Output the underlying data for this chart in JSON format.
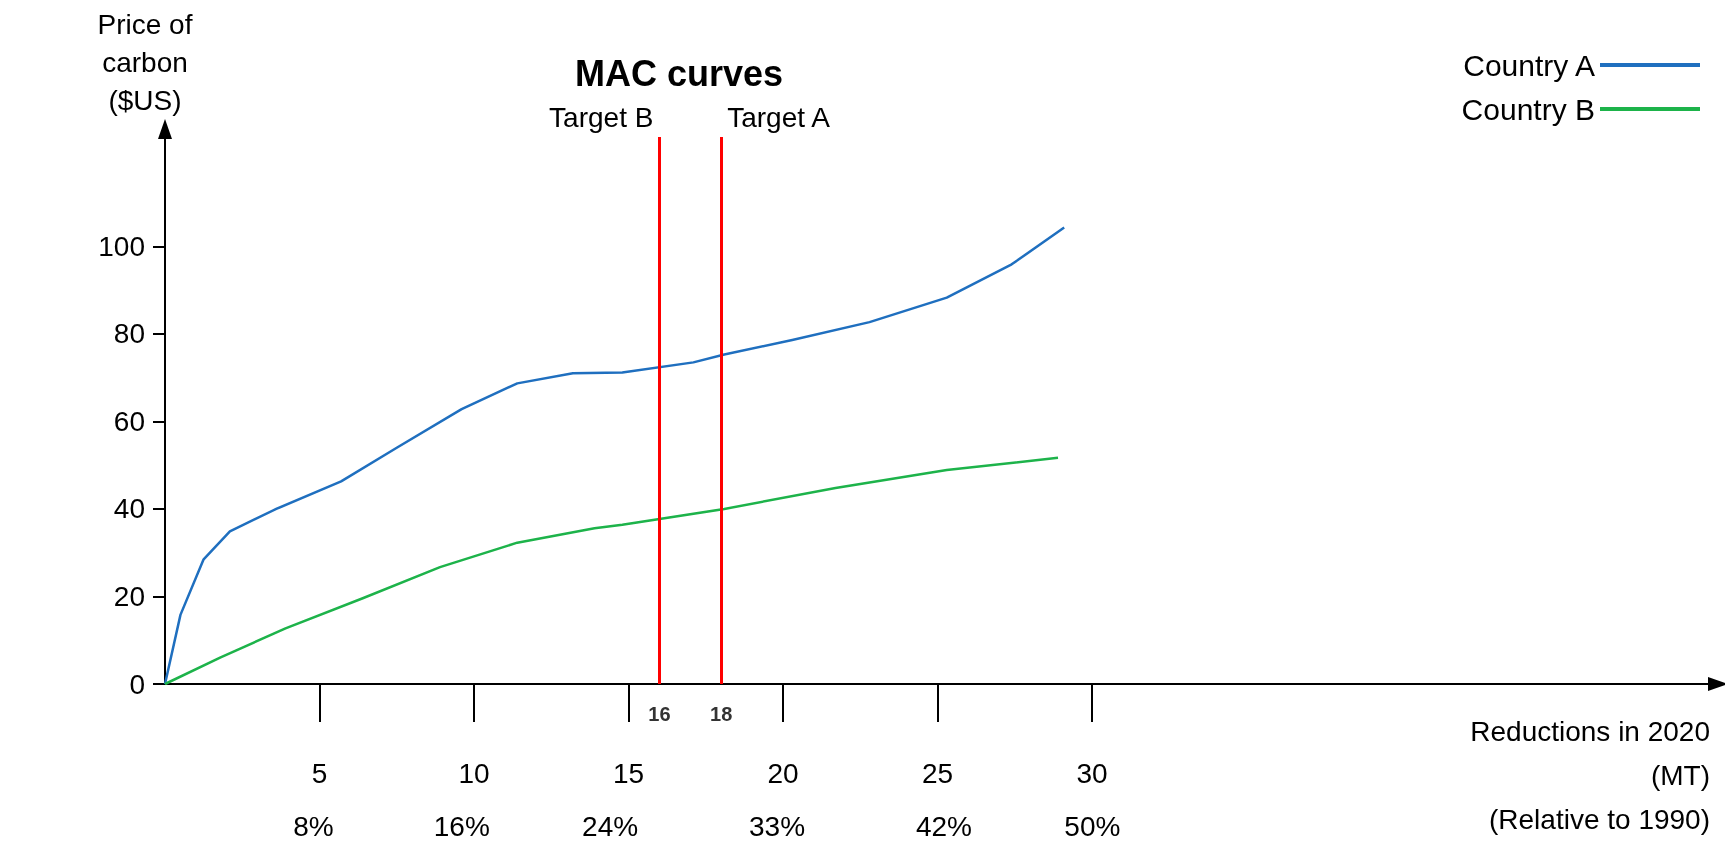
{
  "chart_data": {
    "type": "line",
    "title": "MAC curves",
    "xlabel": "Reductions in 2020\n(MT)\n(Relative to 1990)",
    "ylabel": "Price of\ncarbon\n($US)",
    "xlim": [
      0,
      50
    ],
    "ylim": [
      0,
      125
    ],
    "xticks": [
      5,
      10,
      15,
      20,
      25,
      30
    ],
    "x2lim": [
      0,
      83.3
    ],
    "x2ticks": [
      {
        "value": 8,
        "label": "8%"
      },
      {
        "value": 16,
        "label": "16%"
      },
      {
        "value": 24,
        "label": "24%"
      },
      {
        "value": 33,
        "label": "33%"
      },
      {
        "value": 42,
        "label": "42%"
      },
      {
        "value": 50,
        "label": "50%"
      }
    ],
    "yticks": [
      0,
      20,
      40,
      60,
      80,
      100
    ],
    "series": [
      {
        "name": "Country A",
        "color": "#1f6fbf",
        "x": [
          0,
          0.5,
          1.25,
          2.1,
          3.6,
          5.7,
          7.5,
          9.6,
          11.4,
          13.2,
          14.8,
          17.1,
          18.1,
          20.3,
          22.8,
          25.3,
          27.4,
          29.1
        ],
        "values": [
          0,
          15.8,
          28.5,
          34.9,
          40,
          46.3,
          54,
          62.8,
          68.7,
          71,
          71.2,
          73.5,
          75.3,
          78.6,
          82.7,
          88.3,
          95.9,
          104.3
        ]
      },
      {
        "name": "Country B",
        "color": "#1db34a",
        "x": [
          0,
          1.8,
          3.9,
          6.4,
          8.9,
          11.4,
          13.9,
          14.8,
          18.1,
          21.7,
          25.3,
          28.9
        ],
        "values": [
          0,
          6.1,
          12.7,
          19.6,
          26.7,
          32.3,
          35.6,
          36.4,
          40,
          44.8,
          48.9,
          51.7
        ]
      }
    ],
    "ref_lines": [
      {
        "axis": "x",
        "value": 16,
        "label": "Target B",
        "color": "#ff0000"
      },
      {
        "axis": "x",
        "value": 18,
        "label": "Target A",
        "color": "#ff0000"
      }
    ],
    "annotations": [
      {
        "text": "16",
        "x": 16,
        "y": 0
      },
      {
        "text": "18",
        "x": 18,
        "y": 0
      }
    ],
    "legend": "top right",
    "grid": false,
    "marker": "none",
    "line_style": "solid"
  }
}
